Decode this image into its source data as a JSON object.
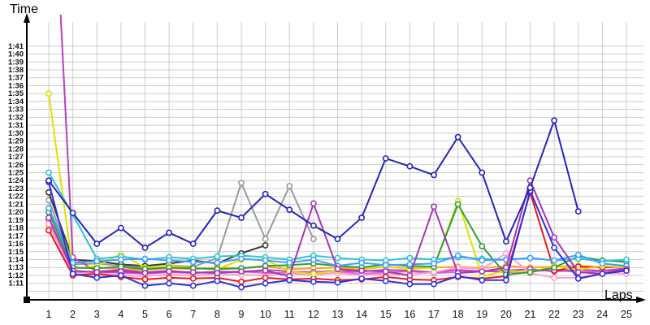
{
  "titles": {
    "y_axis": "Time",
    "x_axis": "Laps"
  },
  "chart_data": {
    "type": "line",
    "title": "",
    "xlabel": "Laps",
    "ylabel": "Time",
    "legend": "none",
    "grid": true,
    "marker": "open-circle",
    "x_ticks": [
      1,
      2,
      3,
      4,
      5,
      6,
      7,
      8,
      9,
      10,
      11,
      12,
      13,
      14,
      15,
      16,
      17,
      18,
      19,
      20,
      21,
      22,
      23,
      24,
      25
    ],
    "y_tick_labels": [
      "1:41",
      "1:40",
      "1:39",
      "1:38",
      "1:37",
      "1:36",
      "1:35",
      "1:34",
      "1:33",
      "1:32",
      "1:31",
      "1:30",
      "1:29",
      "1:28",
      "1:27",
      "1:26",
      "1:25",
      "1:24",
      "1:23",
      "1:22",
      "1:21",
      "1:20",
      "1:19",
      "1:18",
      "1:17",
      "1:16",
      "1:15",
      "1:14",
      "1:13",
      "1:12",
      "1:11"
    ],
    "y_axis_seconds_range": [
      70,
      104
    ],
    "note_colors": {
      "grid": "#cccccc",
      "axis": "#000000",
      "background": "#ffffff"
    },
    "series": [
      {
        "name": "gray",
        "color": "#9a9a9a",
        "values_seconds": [
          81.5,
          73.4,
          73.5,
          73.2,
          73.0,
          73.3,
          73.1,
          74.2,
          83.7,
          76.6,
          83.3,
          76.6
        ]
      },
      {
        "name": "black",
        "color": "#3a3a3a",
        "values_seconds": [
          82.5,
          74.0,
          73.8,
          73.4,
          73.2,
          73.5,
          73.9,
          73.5,
          74.8,
          75.8
        ]
      },
      {
        "name": "orange",
        "color": "#ffa028",
        "values_seconds": [
          78.2,
          72.9,
          73.0,
          72.8,
          72.7,
          72.9,
          72.8,
          73.0,
          72.9,
          73.1,
          72.8,
          72.9,
          73.0,
          72.8,
          73.1,
          72.9,
          73.0,
          73.1,
          72.9,
          73.2,
          73.0,
          73.1,
          73.2,
          73.1,
          73.2
        ]
      },
      {
        "name": "magenta",
        "color": "#e060e0",
        "values_seconds": [
          79.0,
          72.4,
          72.5,
          72.3,
          72.2,
          72.4,
          72.3,
          72.4,
          72.5,
          72.3,
          72.3,
          72.4,
          72.5,
          72.2,
          72.4,
          72.5,
          72.3,
          72.4,
          72.6,
          72.4,
          72.5,
          72.7,
          72.4,
          72.5,
          72.7
        ]
      },
      {
        "name": "purple",
        "color": "#b83fc0",
        "clipped_above_axis_lap1": true,
        "values_seconds": [
          135.0,
          74.3,
          72.5,
          72.7,
          72.4,
          72.6,
          72.3,
          72.5,
          72.4,
          72.7,
          72.5,
          72.4,
          72.6,
          72.5,
          72.7,
          72.6,
          72.4,
          72.7,
          72.5,
          72.6,
          72.8,
          72.5,
          72.7,
          72.6,
          72.9
        ]
      },
      {
        "name": "pink",
        "color": "#ff9fce",
        "values_seconds": [
          78.5,
          72.1,
          72.3,
          72.0,
          71.9,
          72.1,
          72.0,
          72.2,
          72.1,
          72.0,
          72.2,
          72.1,
          72.3,
          72.0,
          72.2,
          72.1,
          72.4,
          73.0,
          72.8,
          74.8,
          72.3,
          71.7,
          71.7,
          72.3,
          72.2
        ]
      },
      {
        "name": "red",
        "color": "#e81919",
        "values_seconds": [
          77.7,
          72.0,
          72.2,
          71.8,
          71.5,
          71.7,
          71.6,
          71.7,
          71.2,
          71.7,
          71.5,
          71.6,
          71.4,
          71.5,
          71.8,
          71.5,
          71.4,
          71.8,
          71.6,
          71.9,
          82.5,
          72.6,
          73.1,
          73.0,
          73.1
        ]
      },
      {
        "name": "yellow",
        "color": "#e0e000",
        "values_seconds": [
          95.0,
          72.8,
          73.2,
          74.7,
          73.0,
          73.3,
          72.9,
          72.8,
          74.0,
          74.0,
          72.5,
          72.2,
          72.6,
          72.9,
          73.1,
          72.8,
          73.0,
          81.4,
          71.9,
          72.6,
          72.4,
          73.2,
          72.7,
          73.2,
          73.0
        ]
      },
      {
        "name": "green",
        "color": "#2f9e2f",
        "values_seconds": [
          80.0,
          73.0,
          72.9,
          73.1,
          72.8,
          73.0,
          72.9,
          72.8,
          72.9,
          73.2,
          73.3,
          73.5,
          73.2,
          73.0,
          73.4,
          73.2,
          73.1,
          81.0,
          75.7,
          72.1,
          72.4,
          73.0,
          74.4,
          73.9,
          73.7
        ]
      },
      {
        "name": "cyan",
        "color": "#2ec4d4",
        "values_seconds": [
          85.0,
          79.7,
          74.1,
          74.4,
          74.0,
          74.3,
          74.1,
          74.4,
          74.5,
          74.3,
          74.0,
          74.5,
          74.2,
          74.0,
          73.9,
          74.2,
          74.0,
          74.3,
          74.1,
          74.0,
          74.2,
          73.9,
          74.1,
          73.8,
          74.0
        ]
      },
      {
        "name": "skyblue",
        "color": "#3f9fff",
        "values_seconds": [
          80.5,
          73.6,
          73.8,
          74.0,
          74.1,
          73.9,
          73.7,
          73.6,
          74.1,
          73.9,
          73.6,
          74.0,
          73.2,
          73.6,
          73.3,
          73.4,
          73.5,
          74.5,
          73.9,
          74.0,
          74.2,
          73.9,
          74.6,
          73.5,
          73.2
        ]
      },
      {
        "name": "violet",
        "color": "#a635b5",
        "values_seconds": [
          79.3,
          72.6,
          72.4,
          72.5,
          72.3,
          72.5,
          72.4,
          72.3,
          72.5,
          72.6,
          71.9,
          81.1,
          72.8,
          72.6,
          72.5,
          72.0,
          80.7,
          72.3,
          72.5,
          73.0,
          84.0,
          76.8,
          72.4,
          72.2,
          72.8
        ]
      },
      {
        "name": "blue",
        "color": "#3030e0",
        "values_seconds": [
          83.8,
          72.2,
          71.7,
          72.0,
          70.7,
          71.0,
          70.7,
          71.3,
          70.5,
          71.0,
          71.4,
          71.2,
          71.1,
          71.6,
          71.3,
          70.9,
          70.9,
          71.9,
          71.4,
          71.4,
          82.7,
          75.5,
          71.6,
          72.2,
          72.6
        ]
      },
      {
        "name": "navy",
        "color": "#2424bd",
        "values_seconds": [
          84.0,
          79.9,
          76.0,
          78.0,
          75.5,
          77.4,
          76.0,
          80.2,
          79.3,
          82.3,
          80.3,
          78.3,
          76.6,
          79.3,
          86.8,
          85.8,
          84.7,
          89.5,
          85.0,
          76.3,
          83.1,
          91.6,
          80.1
        ]
      }
    ]
  }
}
